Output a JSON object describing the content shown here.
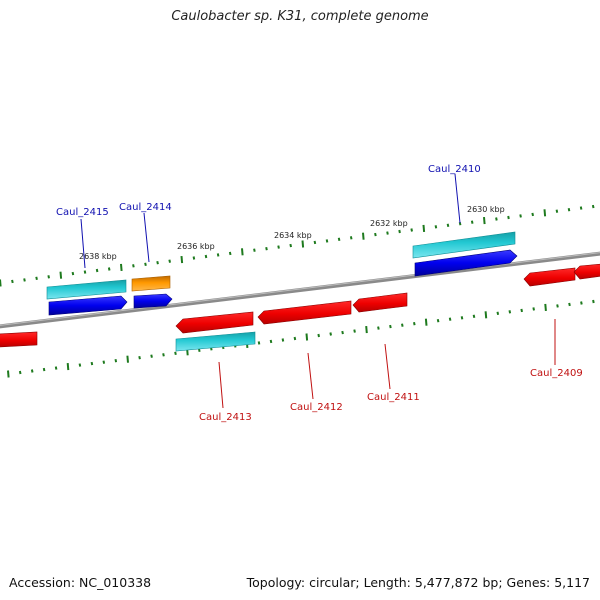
{
  "title": "Caulobacter sp. K31, complete genome",
  "footer": {
    "accession": "Accession: NC_010338",
    "summary": "Topology: circular; Length: 5,477,872 bp; Genes: 5,117"
  },
  "colors": {
    "backbone": "#8a8a8a",
    "tick": "#1e7a1e",
    "forward_cds": "#0000ee",
    "forward_rna": "#22c8d2",
    "reverse_cds": "#ee0000",
    "reverse_rna": "#22c8d2",
    "other": "#ff9900",
    "label_forward": "#1010b0",
    "label_reverse": "#c01010"
  },
  "scale_labels": [
    "2638 kbp",
    "2636 kbp",
    "2634 kbp",
    "2632 kbp",
    "2630 kbp"
  ],
  "genes": [
    {
      "locus": "Caul_2415",
      "strand": "forward"
    },
    {
      "locus": "Caul_2414",
      "strand": "forward"
    },
    {
      "locus": "Caul_2410",
      "strand": "forward"
    },
    {
      "locus": "Caul_2413",
      "strand": "reverse"
    },
    {
      "locus": "Caul_2412",
      "strand": "reverse"
    },
    {
      "locus": "Caul_2411",
      "strand": "reverse"
    },
    {
      "locus": "Caul_2409",
      "strand": "reverse"
    }
  ]
}
